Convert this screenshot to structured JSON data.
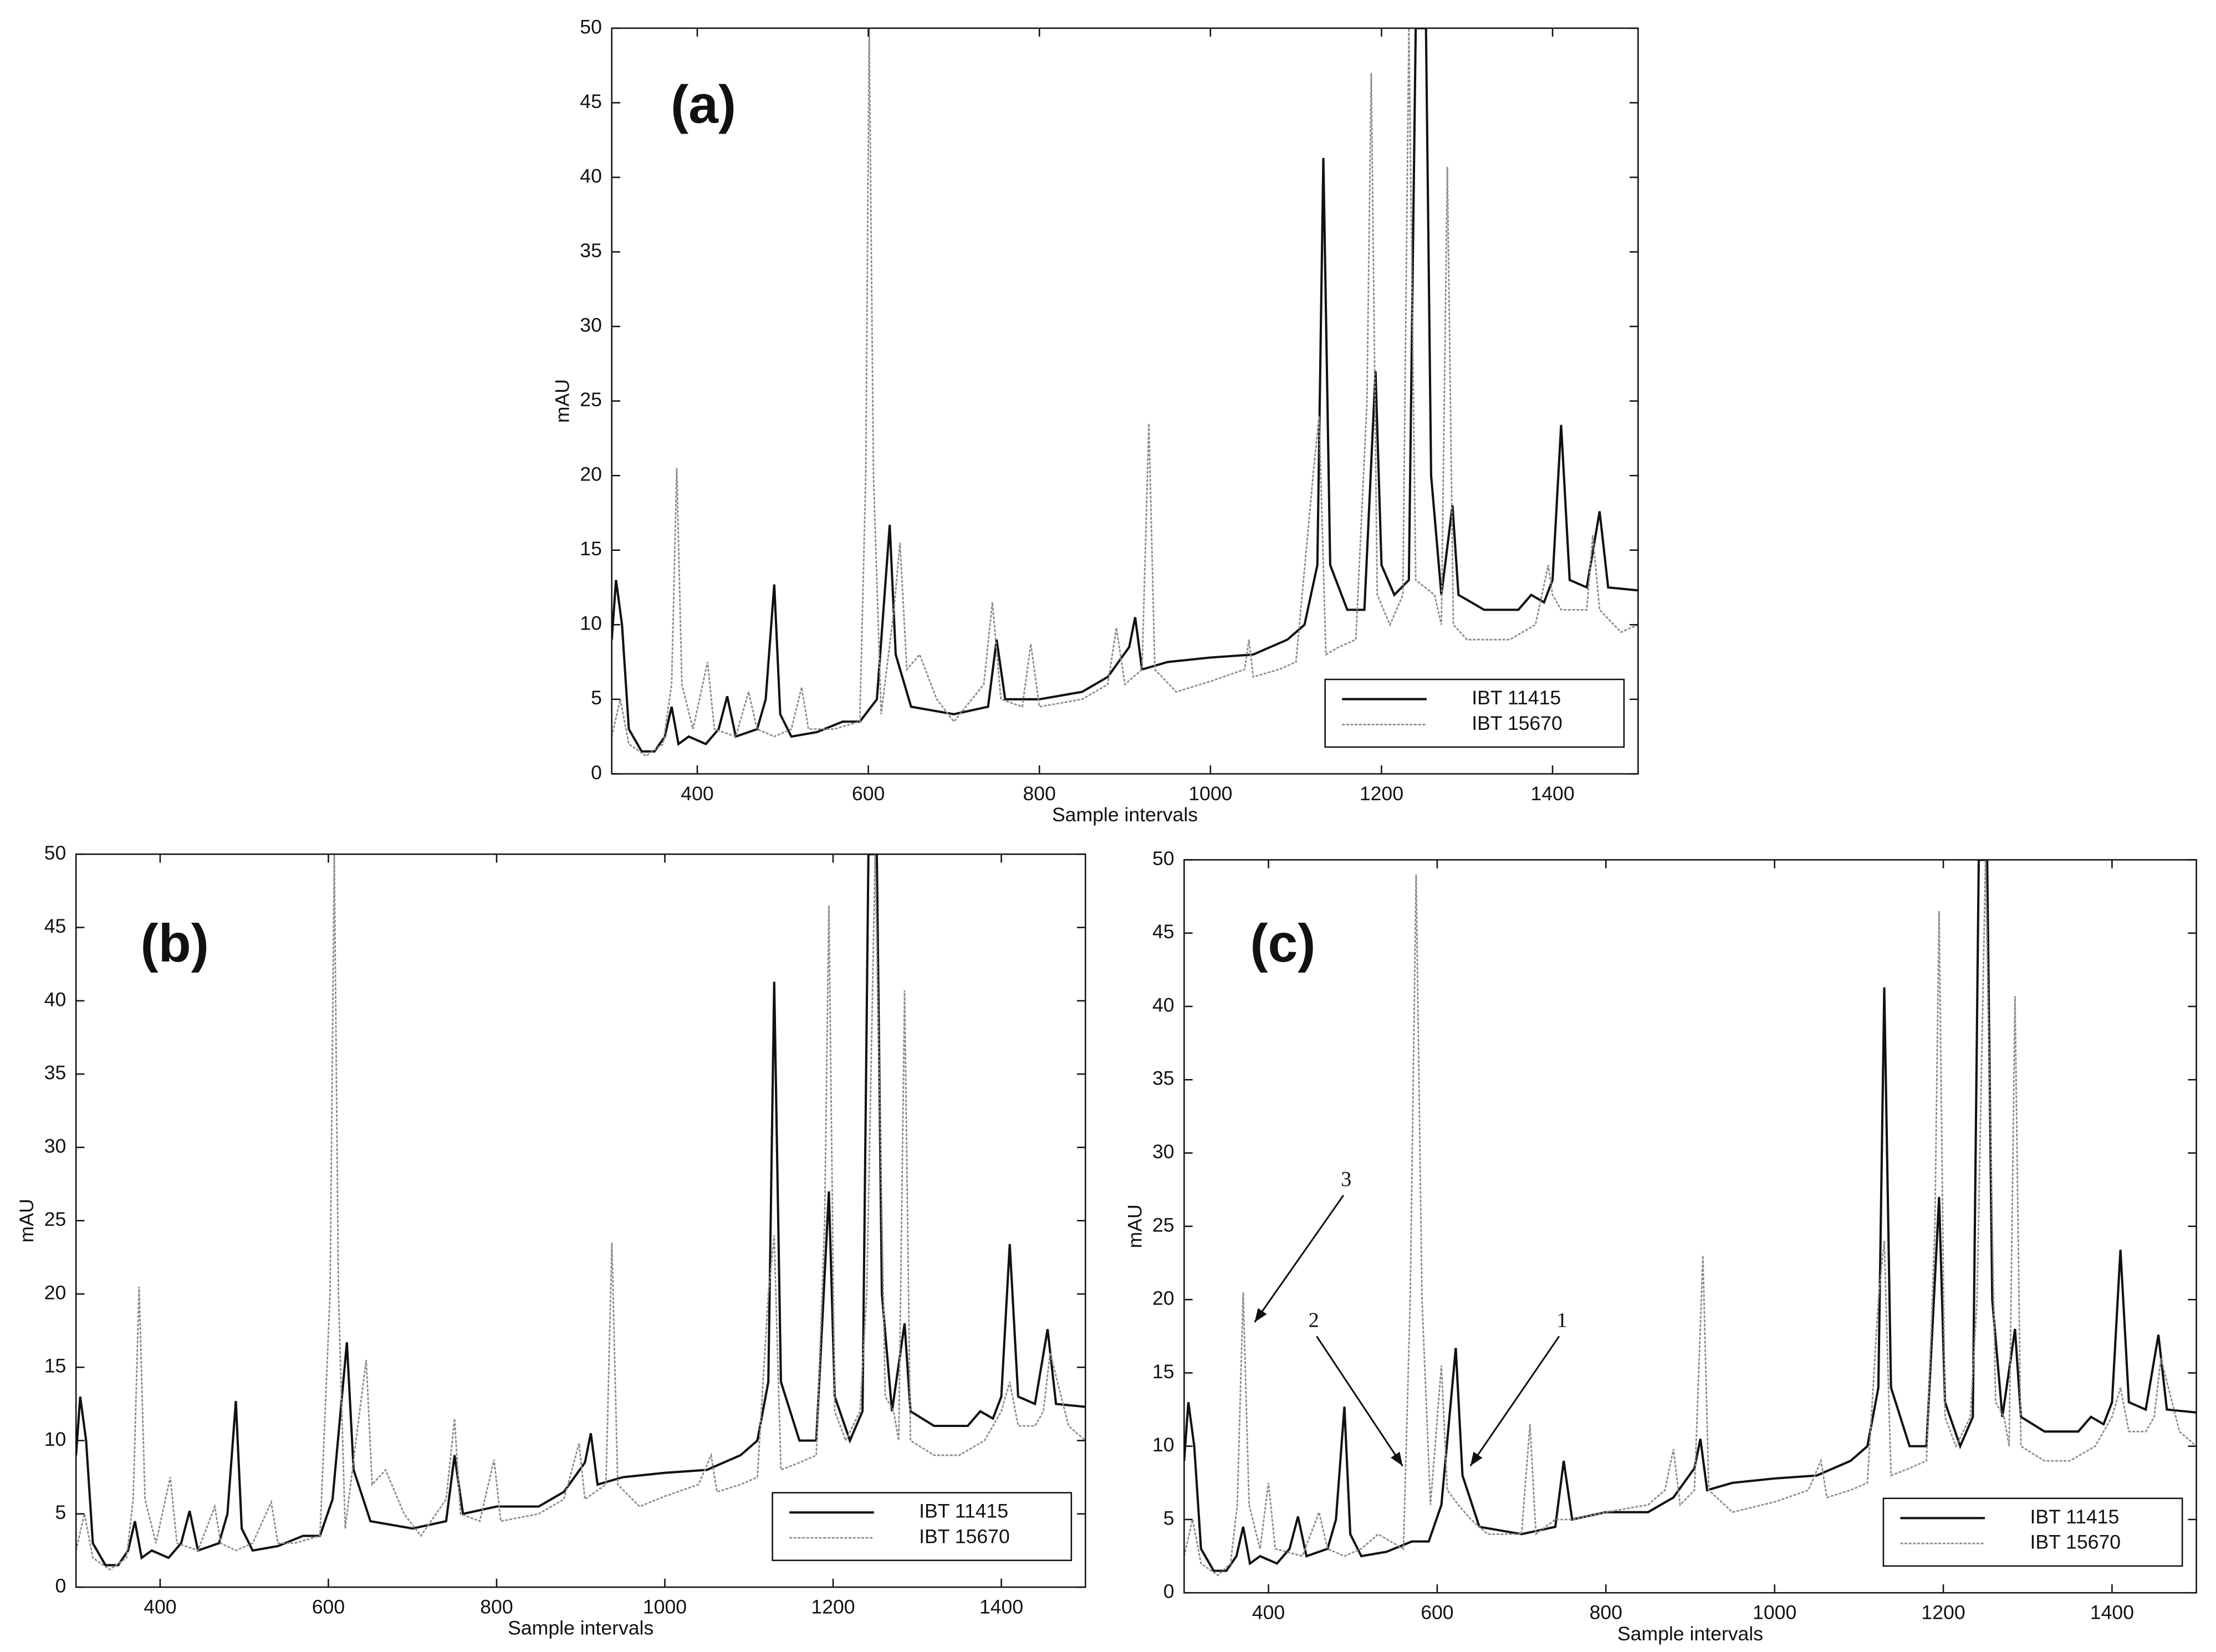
{
  "chart_data": [
    {
      "type": "line",
      "title": "(a)",
      "xlabel": "Sample intervals",
      "ylabel": "mAU",
      "xlim": [
        300,
        1500
      ],
      "ylim": [
        0,
        50
      ],
      "xticks": [
        400,
        600,
        800,
        1000,
        1200,
        1400
      ],
      "yticks": [
        0,
        5,
        10,
        15,
        20,
        25,
        30,
        35,
        40,
        45,
        50
      ],
      "legend": "lower right",
      "series": [
        {
          "name": "IBT 11415",
          "color": "#111111",
          "x": [
            300,
            305,
            312,
            320,
            335,
            350,
            362,
            370,
            378,
            390,
            410,
            425,
            435,
            445,
            470,
            480,
            490,
            497,
            510,
            540,
            570,
            590,
            610,
            625,
            632,
            650,
            700,
            740,
            750,
            760,
            800,
            850,
            880,
            905,
            912,
            920,
            950,
            1000,
            1050,
            1090,
            1110,
            1125,
            1132,
            1140,
            1160,
            1180,
            1193,
            1200,
            1215,
            1232,
            1240,
            1252,
            1258,
            1270,
            1283,
            1290,
            1320,
            1360,
            1375,
            1390,
            1400,
            1410,
            1420,
            1440,
            1455,
            1465,
            1500
          ],
          "values": [
            9,
            13,
            10,
            3,
            1.5,
            1.5,
            2.5,
            4.5,
            2,
            2.5,
            2,
            3,
            5.2,
            2.5,
            3,
            5,
            12.7,
            4,
            2.5,
            2.8,
            3.5,
            3.5,
            5,
            16.7,
            8,
            4.5,
            4,
            4.5,
            9,
            5,
            5,
            5.5,
            6.5,
            8.5,
            10.5,
            7,
            7.5,
            7.8,
            8,
            9,
            10,
            14,
            41.3,
            14,
            11,
            11,
            27,
            14,
            12,
            13,
            50,
            50,
            20,
            12,
            18,
            12,
            11,
            11,
            12,
            11.5,
            13,
            23.4,
            13,
            12.5,
            17.6,
            12.5,
            12.3
          ]
        },
        {
          "name": "IBT 15670",
          "color": "#8c8c8c",
          "x": [
            300,
            310,
            320,
            340,
            360,
            370,
            376,
            382,
            395,
            412,
            420,
            445,
            460,
            470,
            490,
            510,
            522,
            530,
            560,
            590,
            597,
            601,
            606,
            615,
            630,
            637,
            645,
            660,
            680,
            700,
            735,
            745,
            755,
            780,
            790,
            800,
            850,
            880,
            890,
            900,
            920,
            928,
            935,
            960,
            1000,
            1040,
            1045,
            1050,
            1080,
            1100,
            1120,
            1127,
            1135,
            1150,
            1170,
            1183,
            1188,
            1195,
            1210,
            1225,
            1232,
            1240,
            1262,
            1270,
            1277,
            1284,
            1300,
            1320,
            1350,
            1380,
            1395,
            1400,
            1410,
            1440,
            1447,
            1455,
            1480,
            1500
          ],
          "values": [
            2.5,
            5,
            2,
            1.2,
            2,
            6,
            20.5,
            6,
            3,
            7.5,
            3,
            2.5,
            5.5,
            3,
            2.5,
            3,
            5.8,
            3,
            3,
            3.5,
            20,
            50,
            20,
            4,
            11,
            15.5,
            7,
            8,
            5,
            3.5,
            6,
            11.5,
            5,
            4.5,
            8.7,
            4.5,
            5,
            6,
            9.8,
            6,
            7,
            23.5,
            7,
            5.5,
            6.2,
            7,
            9,
            6.5,
            7,
            7.5,
            20,
            24,
            8,
            8.5,
            9,
            25,
            47,
            12,
            10,
            12,
            50,
            13,
            12,
            10,
            40.7,
            10,
            9,
            9,
            9,
            10,
            14,
            12,
            11,
            11,
            16,
            11,
            9.5,
            10
          ]
        }
      ]
    },
    {
      "type": "line",
      "title": "(b)",
      "xlabel": "Sample intervals",
      "ylabel": "mAU",
      "xlim": [
        300,
        1500
      ],
      "ylim": [
        0,
        50
      ],
      "xticks": [
        400,
        600,
        800,
        1000,
        1200,
        1400
      ],
      "yticks": [
        0,
        5,
        10,
        15,
        20,
        25,
        30,
        35,
        40,
        45,
        50
      ],
      "legend": "lower right",
      "series": [
        {
          "name": "IBT 11415",
          "color": "#111111",
          "x": [
            300,
            305,
            312,
            320,
            335,
            350,
            362,
            370,
            378,
            390,
            410,
            425,
            435,
            445,
            470,
            480,
            490,
            497,
            510,
            540,
            570,
            590,
            605,
            622,
            630,
            650,
            700,
            740,
            750,
            760,
            800,
            850,
            880,
            905,
            912,
            920,
            950,
            1000,
            1050,
            1090,
            1110,
            1123,
            1130,
            1138,
            1160,
            1180,
            1195,
            1202,
            1220,
            1235,
            1242,
            1252,
            1258,
            1270,
            1285,
            1292,
            1320,
            1360,
            1375,
            1390,
            1400,
            1410,
            1420,
            1440,
            1455,
            1465,
            1500
          ],
          "values": [
            9,
            13,
            10,
            3,
            1.5,
            1.5,
            2.5,
            4.5,
            2,
            2.5,
            2,
            3,
            5.2,
            2.5,
            3,
            5,
            12.7,
            4,
            2.5,
            2.8,
            3.5,
            3.5,
            6,
            16.7,
            8,
            4.5,
            4,
            4.5,
            9,
            5,
            5.5,
            5.5,
            6.5,
            8.5,
            10.5,
            7,
            7.5,
            7.8,
            8,
            9,
            10,
            14,
            41.3,
            14,
            10,
            10,
            27,
            13,
            10,
            12,
            50,
            50,
            20,
            12,
            18,
            12,
            11,
            11,
            12,
            11.5,
            13,
            23.4,
            13,
            12.5,
            17.6,
            12.5,
            12.3
          ]
        },
        {
          "name": "IBT 15670",
          "color": "#8c8c8c",
          "x": [
            300,
            310,
            320,
            340,
            360,
            368,
            375,
            382,
            395,
            412,
            420,
            445,
            465,
            472,
            490,
            510,
            532,
            540,
            560,
            590,
            602,
            607,
            612,
            620,
            635,
            645,
            652,
            668,
            690,
            710,
            740,
            750,
            757,
            780,
            797,
            805,
            850,
            880,
            898,
            905,
            930,
            937,
            944,
            970,
            1000,
            1040,
            1055,
            1062,
            1090,
            1110,
            1123,
            1130,
            1138,
            1160,
            1180,
            1190,
            1195,
            1202,
            1215,
            1232,
            1240,
            1250,
            1262,
            1272,
            1278,
            1285,
            1292,
            1320,
            1350,
            1380,
            1400,
            1410,
            1420,
            1440,
            1450,
            1458,
            1480,
            1500
          ],
          "values": [
            2.5,
            5,
            2,
            1.2,
            2,
            6,
            20.5,
            6,
            3,
            7.5,
            3,
            2.5,
            5.5,
            3,
            2.5,
            3,
            5.8,
            3,
            3,
            3.5,
            20,
            50,
            20,
            4,
            11,
            15.5,
            7,
            8,
            5,
            3.5,
            6,
            11.5,
            5,
            4.5,
            8.7,
            4.5,
            5,
            6,
            9.8,
            6,
            7,
            23.5,
            7,
            5.5,
            6.2,
            7,
            9,
            6.5,
            7,
            7.5,
            20,
            24,
            8,
            8.5,
            9,
            25,
            46.5,
            12,
            10,
            12,
            20,
            50,
            13,
            12,
            10,
            40.7,
            10,
            9,
            9,
            10,
            12,
            14,
            11,
            11,
            12,
            16,
            11,
            10
          ]
        }
      ]
    },
    {
      "type": "line",
      "title": "(c)",
      "xlabel": "Sample intervals",
      "ylabel": "mAU",
      "xlim": [
        300,
        1500
      ],
      "ylim": [
        0,
        50
      ],
      "xticks": [
        400,
        600,
        800,
        1000,
        1200,
        1400
      ],
      "yticks": [
        0,
        5,
        10,
        15,
        20,
        25,
        30,
        35,
        40,
        45,
        50
      ],
      "legend": "lower right",
      "annotations": [
        {
          "text": "3"
        },
        {
          "text": "2"
        },
        {
          "text": "1"
        }
      ],
      "series": [
        {
          "name": "IBT 11415",
          "color": "#111111",
          "x": [
            300,
            305,
            312,
            320,
            335,
            350,
            362,
            370,
            378,
            390,
            410,
            425,
            435,
            445,
            470,
            480,
            490,
            497,
            510,
            540,
            570,
            590,
            605,
            622,
            630,
            650,
            700,
            740,
            750,
            760,
            800,
            850,
            880,
            905,
            912,
            920,
            950,
            1000,
            1050,
            1090,
            1110,
            1123,
            1130,
            1138,
            1160,
            1180,
            1195,
            1202,
            1220,
            1235,
            1242,
            1252,
            1258,
            1270,
            1285,
            1292,
            1320,
            1360,
            1375,
            1390,
            1400,
            1410,
            1420,
            1440,
            1455,
            1465,
            1500
          ],
          "values": [
            9,
            13,
            10,
            3,
            1.5,
            1.5,
            2.5,
            4.5,
            2,
            2.5,
            2,
            3,
            5.2,
            2.5,
            3,
            5,
            12.7,
            4,
            2.5,
            2.8,
            3.5,
            3.5,
            6,
            16.7,
            8,
            4.5,
            4,
            4.5,
            9,
            5,
            5.5,
            5.5,
            6.5,
            8.5,
            10.5,
            7,
            7.5,
            7.8,
            8,
            9,
            10,
            14,
            41.3,
            14,
            10,
            10,
            27,
            13,
            10,
            12,
            50,
            50,
            20,
            12,
            18,
            12,
            11,
            11,
            12,
            11.5,
            13,
            23.4,
            13,
            12.5,
            17.6,
            12.5,
            12.3
          ]
        },
        {
          "name": "IBT 15670",
          "color": "#8c8c8c",
          "x": [
            300,
            310,
            320,
            340,
            355,
            363,
            370,
            377,
            390,
            400,
            408,
            440,
            460,
            470,
            490,
            510,
            530,
            545,
            560,
            568,
            575,
            582,
            592,
            605,
            612,
            625,
            640,
            660,
            690,
            700,
            710,
            717,
            740,
            760,
            800,
            850,
            870,
            880,
            888,
            905,
            915,
            922,
            950,
            1000,
            1040,
            1055,
            1062,
            1090,
            1110,
            1123,
            1130,
            1138,
            1160,
            1180,
            1190,
            1195,
            1202,
            1215,
            1232,
            1240,
            1250,
            1262,
            1272,
            1278,
            1285,
            1292,
            1320,
            1350,
            1380,
            1400,
            1410,
            1420,
            1440,
            1450,
            1458,
            1480,
            1500
          ],
          "values": [
            2.5,
            5,
            2,
            1.2,
            2,
            6,
            20.5,
            6,
            3,
            7.5,
            3,
            2.5,
            5.5,
            3,
            2.5,
            3,
            4,
            3.5,
            3,
            20,
            49,
            20,
            6,
            15.5,
            7,
            6,
            5,
            4,
            4,
            4,
            11.5,
            4,
            5,
            5,
            5.5,
            6,
            7,
            9.8,
            6,
            7,
            23,
            7,
            5.5,
            6.2,
            7,
            9,
            6.5,
            7,
            7.5,
            20,
            24,
            8,
            8.5,
            9,
            25,
            46.5,
            12,
            10,
            12,
            20,
            50,
            13,
            12,
            10,
            40.7,
            10,
            9,
            9,
            10,
            12,
            14,
            11,
            11,
            12,
            16,
            11,
            10
          ]
        }
      ]
    }
  ]
}
